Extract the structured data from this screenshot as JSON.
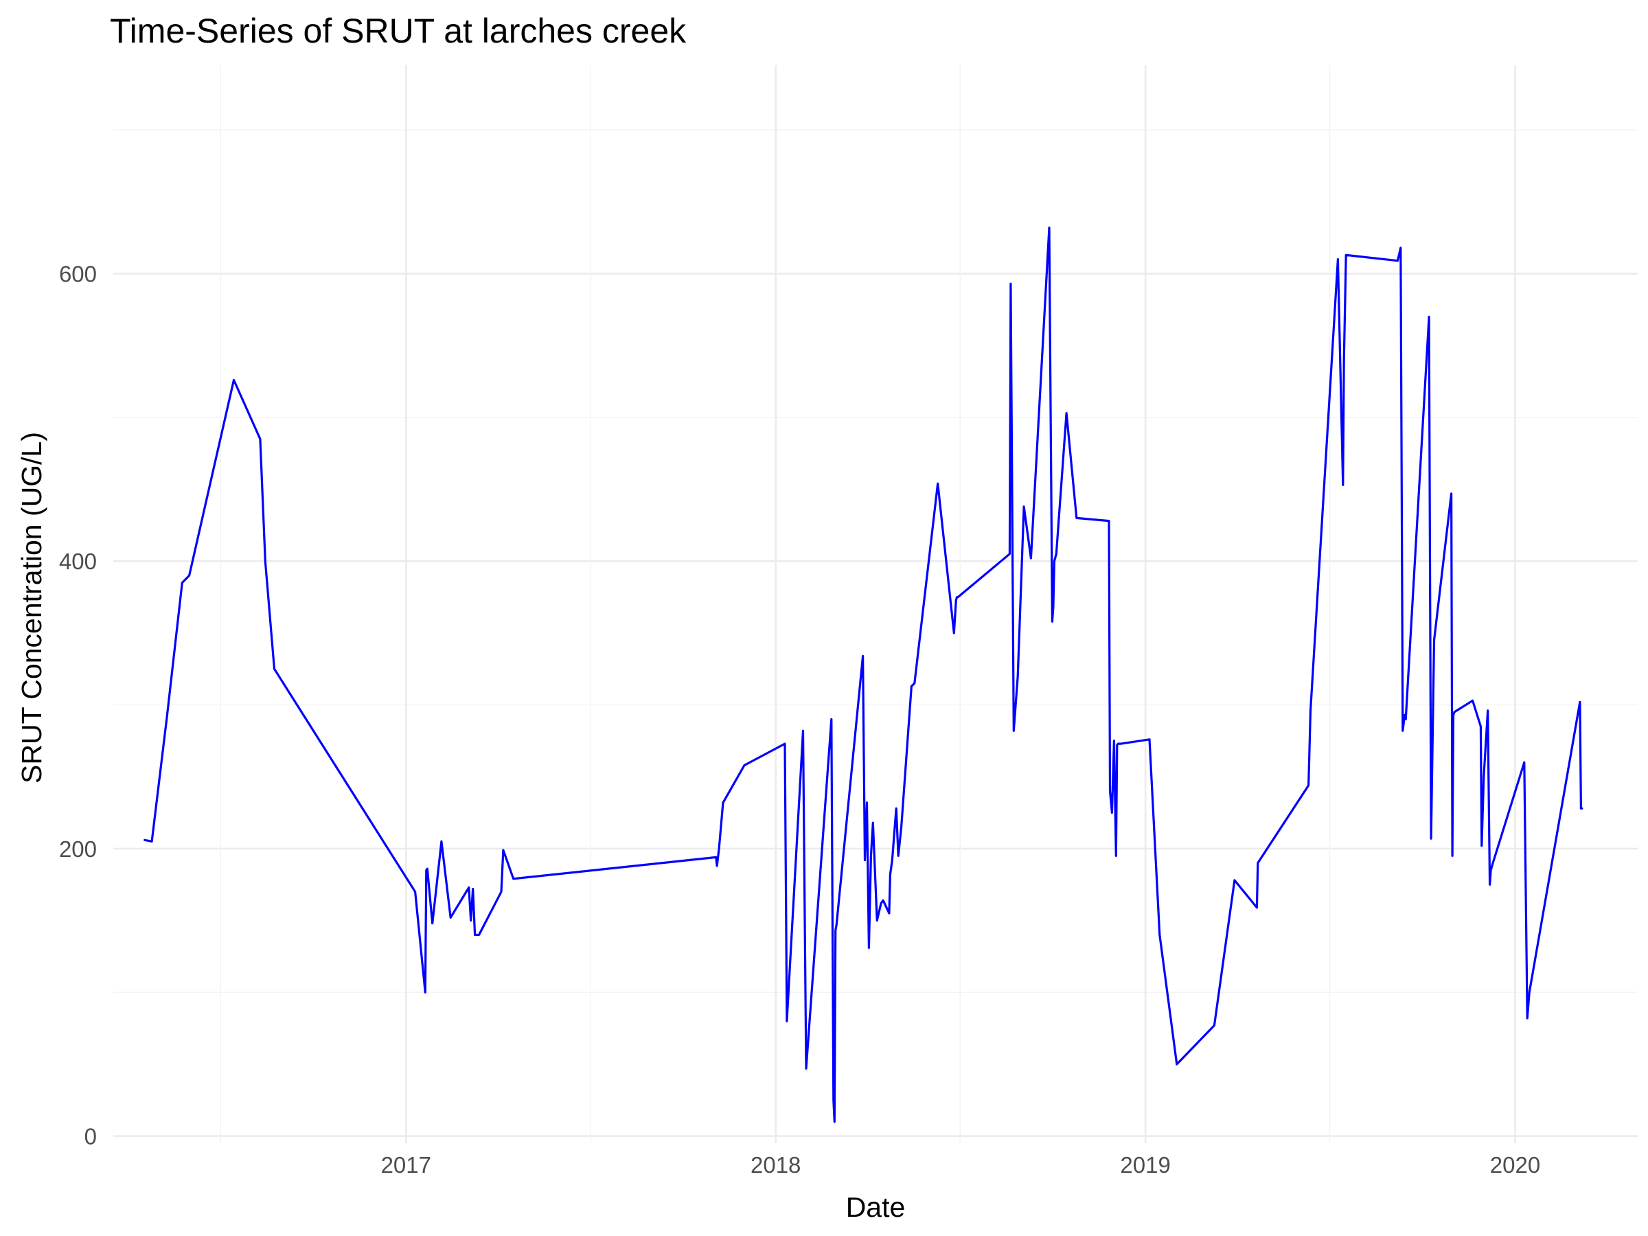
{
  "chart_data": {
    "type": "line",
    "title": "Time-Series of SRUT at larches creek",
    "xlabel": "Date",
    "ylabel": "SRUT Concentration (UG/L)",
    "x_ticks": [
      "2017",
      "2018",
      "2019",
      "2020"
    ],
    "y_ticks": [
      "0",
      "200",
      "400",
      "600"
    ],
    "xlim": [
      "2016-03-18",
      "2020-05-01"
    ],
    "ylim": [
      -5,
      745
    ],
    "grid": true,
    "legend": "none",
    "colors": {
      "line": "#0000ff",
      "grid": "#ebebeb",
      "background": "#ffffff"
    },
    "series": [
      {
        "x": [
          "2016-04-18",
          "2016-04-25",
          "2016-05-10",
          "2016-05-25",
          "2016-06-01",
          "2016-07-15",
          "2016-08-10",
          "2016-08-15",
          "2016-08-24",
          "2017-01-10",
          "2017-01-20",
          "2017-01-21",
          "2017-01-22",
          "2017-01-27",
          "2017-02-05",
          "2017-02-14",
          "2017-03-04",
          "2017-03-06",
          "2017-03-08",
          "2017-03-10",
          "2017-03-14",
          "2017-04-05",
          "2017-04-07",
          "2017-04-17",
          "2017-11-03",
          "2017-11-04",
          "2017-11-06",
          "2017-11-10",
          "2017-12-01",
          "2018-01-10",
          "2018-01-12",
          "2018-01-28",
          "2018-01-31",
          "2018-02-25",
          "2018-02-27",
          "2018-02-28",
          "2018-03-01",
          "2018-03-02",
          "2018-03-28",
          "2018-03-30",
          "2018-04-01",
          "2018-04-03",
          "2018-04-05",
          "2018-04-07",
          "2018-04-11",
          "2018-04-15",
          "2018-04-17",
          "2018-04-23",
          "2018-04-24",
          "2018-04-26",
          "2018-04-30",
          "2018-05-02",
          "2018-05-05",
          "2018-05-15",
          "2018-05-18",
          "2018-06-10",
          "2018-06-26",
          "2018-06-28",
          "2018-06-29",
          "2018-06-30",
          "2018-08-20",
          "2018-08-21",
          "2018-08-24",
          "2018-08-28",
          "2018-09-03",
          "2018-09-10",
          "2018-09-28",
          "2018-10-01",
          "2018-10-02",
          "2018-10-03",
          "2018-10-05",
          "2018-10-15",
          "2018-10-25",
          "2018-11-26",
          "2018-11-27",
          "2018-11-29",
          "2018-12-01",
          "2018-12-03",
          "2018-12-04",
          "2018-12-05",
          "2018-12-08",
          "2019-01-05",
          "2019-01-15",
          "2019-02-01",
          "2019-03-10",
          "2019-03-30",
          "2019-04-21",
          "2019-04-22",
          "2019-06-11",
          "2019-06-13",
          "2019-07-10",
          "2019-07-15",
          "2019-07-16",
          "2019-07-18",
          "2019-07-30",
          "2019-09-07",
          "2019-09-10",
          "2019-09-12",
          "2019-09-14",
          "2019-09-15",
          "2019-10-08",
          "2019-10-10",
          "2019-10-13",
          "2019-10-30",
          "2019-10-31",
          "2019-11-01",
          "2019-11-02",
          "2019-11-20",
          "2019-11-28",
          "2019-11-29",
          "2019-12-01",
          "2019-12-05",
          "2019-12-07",
          "2019-12-08",
          "2019-12-10",
          "2020-01-10",
          "2020-01-13",
          "2020-01-15",
          "2020-03-05",
          "2020-03-06",
          "2020-03-07"
        ],
        "y": [
          206,
          205,
          292,
          385,
          390,
          526,
          485,
          400,
          325,
          170,
          100,
          185,
          186,
          148,
          205,
          152,
          173,
          150,
          172,
          140,
          140,
          170,
          199,
          179,
          194,
          188,
          200,
          232,
          258,
          273,
          80,
          282,
          47,
          290,
          25,
          10,
          143,
          147,
          334,
          192,
          232,
          131,
          195,
          218,
          150,
          162,
          164,
          155,
          182,
          192,
          228,
          195,
          215,
          313,
          315,
          454,
          350,
          373,
          375,
          375,
          405,
          593,
          282,
          320,
          438,
          402,
          632,
          358,
          368,
          400,
          405,
          503,
          430,
          428,
          240,
          225,
          275,
          195,
          272,
          273,
          273,
          276,
          140,
          50,
          77,
          178,
          159,
          190,
          244,
          296,
          610,
          453,
          540,
          613,
          612,
          609,
          618,
          282,
          293,
          290,
          570,
          207,
          345,
          447,
          195,
          293,
          295,
          303,
          285,
          202,
          250,
          296,
          175,
          185,
          190,
          260,
          82,
          100,
          302,
          228,
          228
        ]
      }
    ]
  }
}
